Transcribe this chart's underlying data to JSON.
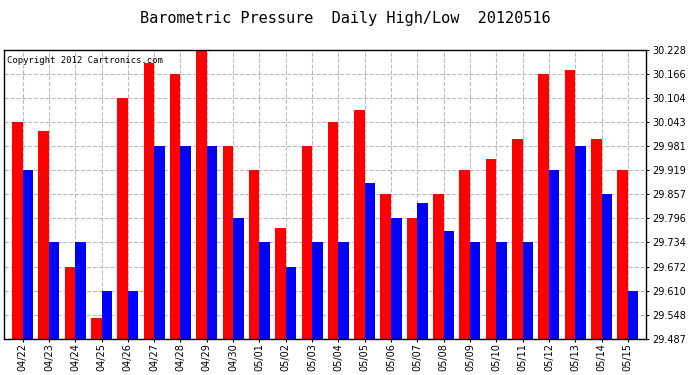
{
  "title": "Barometric Pressure  Daily High/Low  20120516",
  "copyright": "Copyright 2012 Cartronics.com",
  "categories": [
    "04/22",
    "04/23",
    "04/24",
    "04/25",
    "04/26",
    "04/27",
    "04/28",
    "04/29",
    "04/30",
    "05/01",
    "05/02",
    "05/03",
    "05/04",
    "05/05",
    "05/06",
    "05/07",
    "05/08",
    "05/09",
    "05/10",
    "05/11",
    "05/12",
    "05/13",
    "05/14",
    "05/15"
  ],
  "highs": [
    30.043,
    30.02,
    29.672,
    29.54,
    30.104,
    30.193,
    30.166,
    30.228,
    29.981,
    29.919,
    29.772,
    29.981,
    30.043,
    30.073,
    29.857,
    29.796,
    29.857,
    29.919,
    29.948,
    30.0,
    30.166,
    30.177,
    30.0,
    29.919
  ],
  "lows": [
    29.919,
    29.734,
    29.734,
    29.61,
    29.61,
    29.981,
    29.981,
    29.981,
    29.796,
    29.734,
    29.672,
    29.734,
    29.734,
    29.887,
    29.796,
    29.834,
    29.762,
    29.734,
    29.734,
    29.734,
    29.919,
    29.981,
    29.857,
    29.61
  ],
  "bar_color_high": "#FF0000",
  "bar_color_low": "#0000FF",
  "ylim_min": 29.487,
  "ylim_max": 30.228,
  "yticks": [
    29.487,
    29.548,
    29.61,
    29.672,
    29.734,
    29.796,
    29.857,
    29.919,
    29.981,
    30.043,
    30.104,
    30.166,
    30.228
  ],
  "background_color": "#FFFFFF",
  "plot_bg_color": "#FFFFFF",
  "grid_color": "#BBBBBB",
  "title_fontsize": 11,
  "tick_fontsize": 7,
  "copyright_fontsize": 6.5
}
